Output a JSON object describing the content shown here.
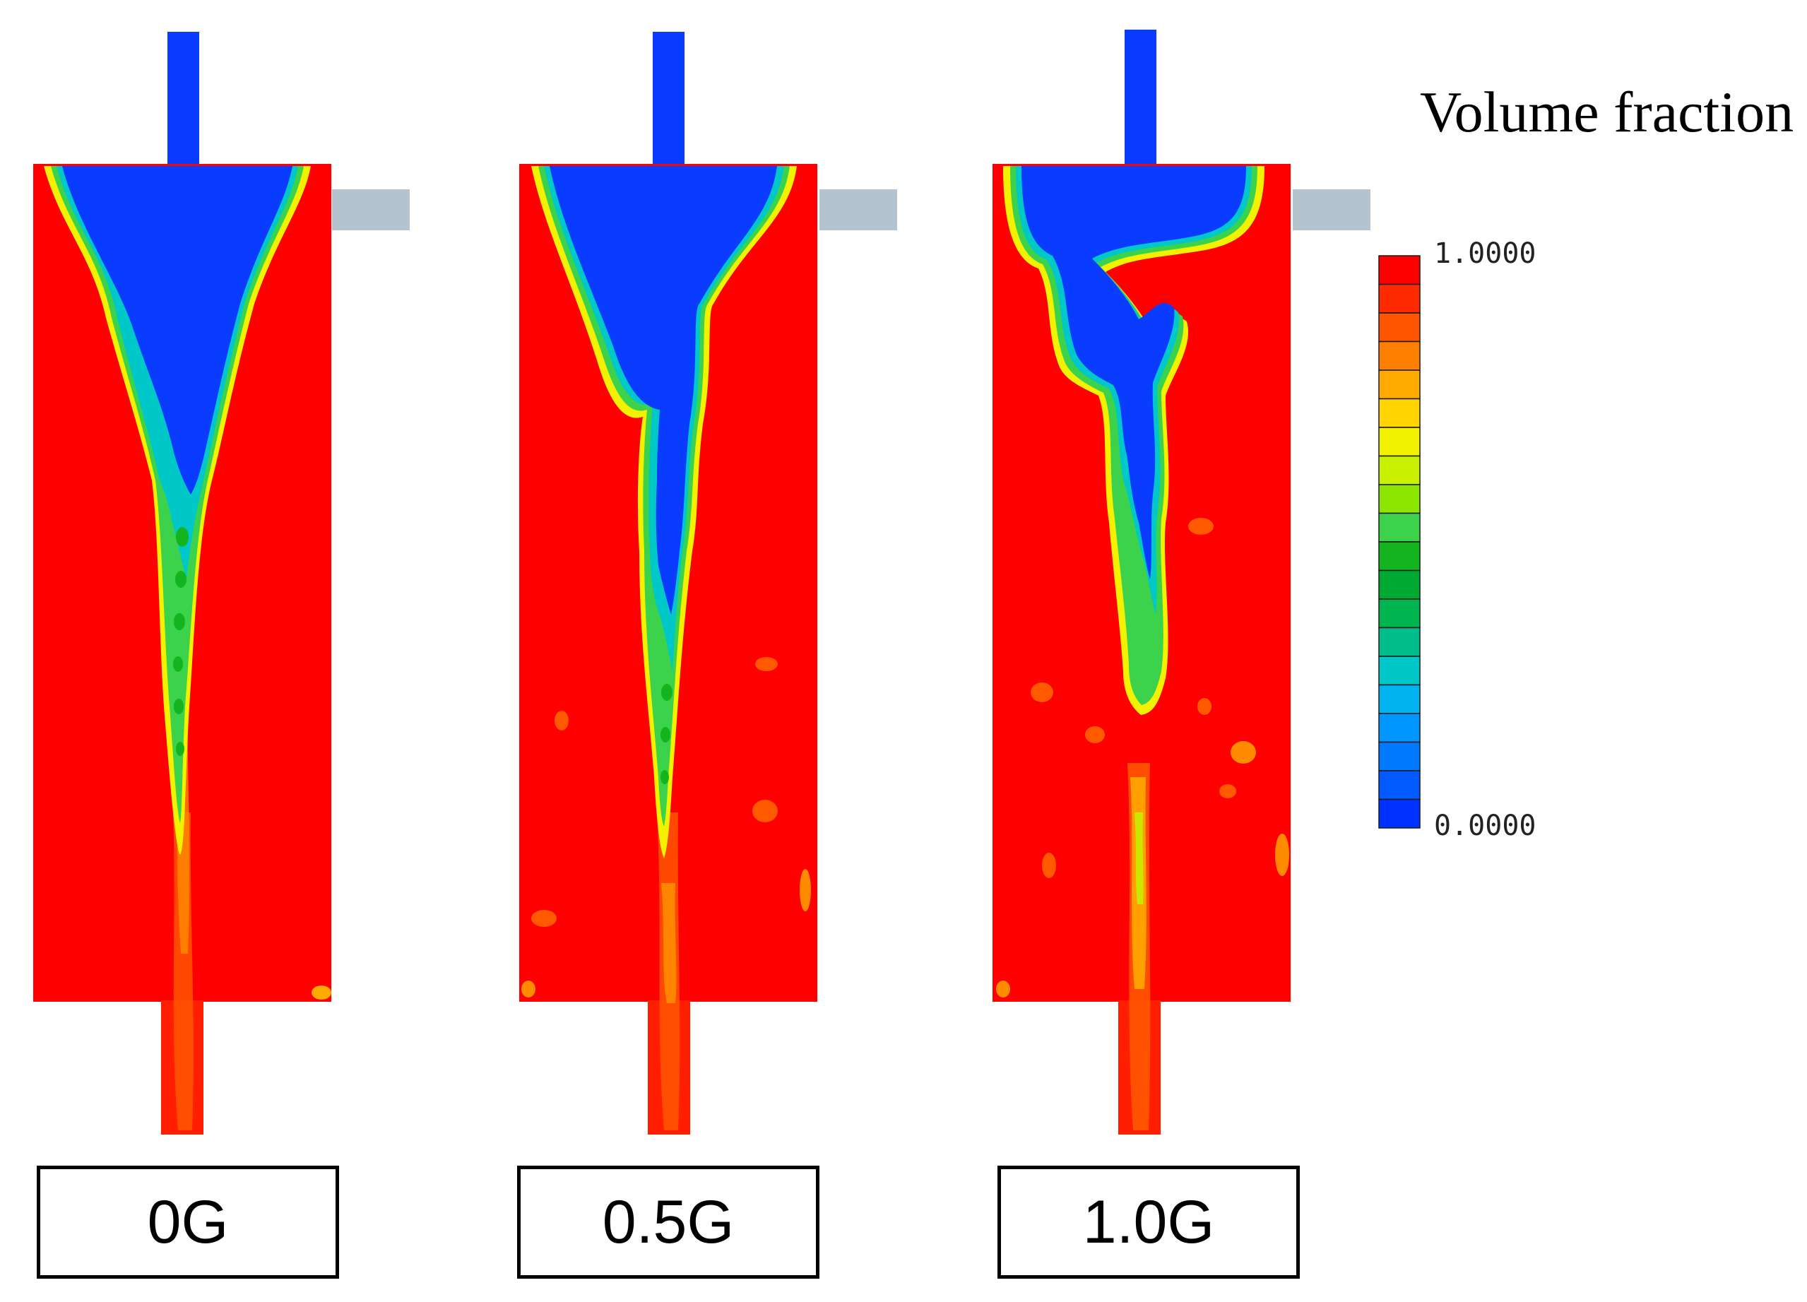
{
  "legend": {
    "title": "Volume fraction",
    "max_label": "1.0000",
    "min_label": "0.0000",
    "colors": [
      "#ff0000",
      "#ff2a00",
      "#ff5500",
      "#ff8000",
      "#ffaa00",
      "#ffd400",
      "#f2f200",
      "#c8f000",
      "#8ce600",
      "#3cd24b",
      "#14b41e",
      "#00aa32",
      "#00b450",
      "#00be8c",
      "#00c8c8",
      "#00b4f0",
      "#0096ff",
      "#0078ff",
      "#005aff",
      "#0032ff"
    ]
  },
  "panels": [
    {
      "label": "0G"
    },
    {
      "label": "0.5G"
    },
    {
      "label": "1.0G"
    }
  ],
  "palette": {
    "liquid": "#ff0000",
    "gas": "#0a3cff",
    "port": "#b4c3cd"
  }
}
